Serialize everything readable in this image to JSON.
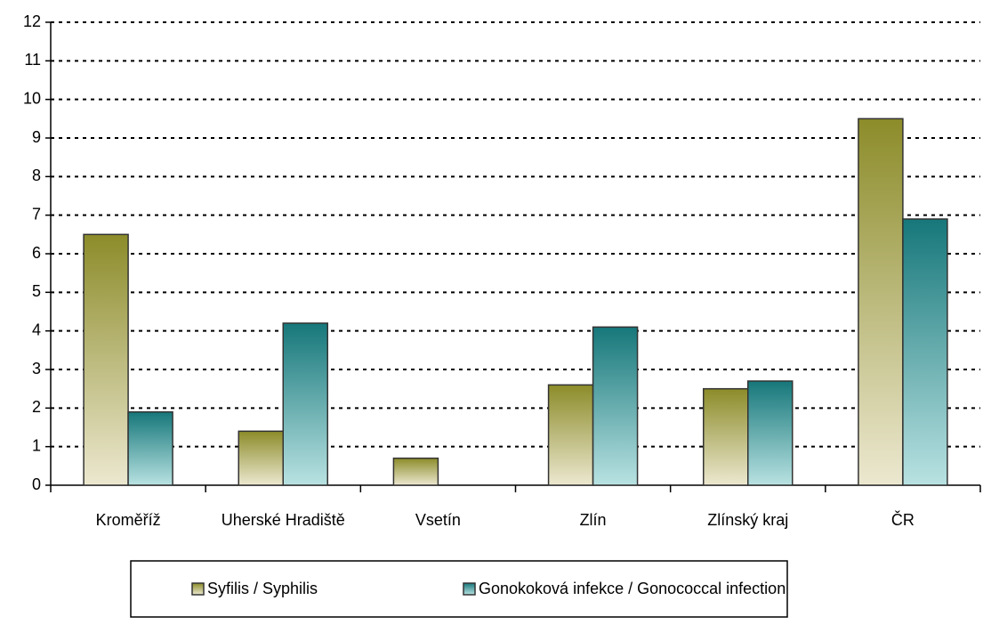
{
  "chart_data": {
    "type": "bar",
    "categories": [
      "Kroměříž",
      "Uherské Hradiště",
      "Vsetín",
      "Zlín",
      "Zlínský kraj",
      "ČR"
    ],
    "series": [
      {
        "name": "Syfilis / Syphilis",
        "color": "#8c8c2a",
        "values": [
          6.5,
          1.4,
          0.7,
          2.6,
          2.5,
          9.5
        ]
      },
      {
        "name": "Gonokoková infekce / Gonococcal infection",
        "color": "#16777a",
        "values": [
          1.9,
          4.2,
          null,
          4.1,
          2.7,
          6.9
        ]
      }
    ],
    "ylim": [
      0,
      12
    ],
    "yticks": [
      0,
      1,
      2,
      3,
      4,
      5,
      6,
      7,
      8,
      9,
      10,
      11,
      12
    ],
    "grid": true
  }
}
